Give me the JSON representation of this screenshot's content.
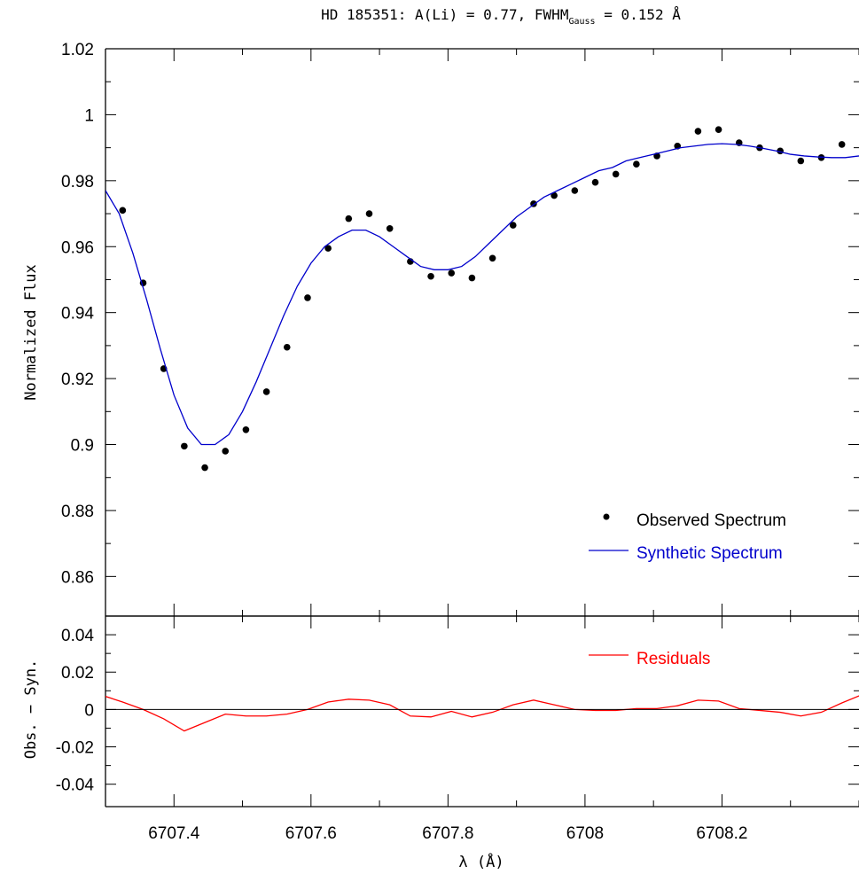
{
  "title": {
    "prefix": "HD 185351: A(Li) = 0.77, FWHM",
    "subscript": "Gauss",
    "suffix": " = 0.152 Å"
  },
  "chart_data": [
    {
      "type": "scatter+line",
      "panel": "main",
      "title": "HD 185351: A(Li) = 0.77, FWHM_Gauss = 0.152 Å",
      "xlabel": "λ (Å)",
      "ylabel": "Normalized Flux",
      "xlim": [
        6707.3,
        6708.4
      ],
      "ylim": [
        0.848,
        1.02
      ],
      "xticks": [
        6707.4,
        6707.6,
        6707.8,
        6708,
        6708.2
      ],
      "xtick_labels": [
        "6707.4",
        "6707.6",
        "6707.8",
        "6708",
        "6708.2"
      ],
      "yticks": [
        0.86,
        0.88,
        0.9,
        0.92,
        0.94,
        0.96,
        0.98,
        1,
        1.02
      ],
      "ytick_labels": [
        "0.86",
        "0.88",
        "0.9",
        "0.92",
        "0.94",
        "0.96",
        "0.98",
        "1",
        "1.02"
      ],
      "legend_position": "bottom-right",
      "series": [
        {
          "name": "Observed Spectrum",
          "kind": "points",
          "color": "#000000",
          "x": [
            6707.325,
            6707.355,
            6707.385,
            6707.415,
            6707.445,
            6707.475,
            6707.505,
            6707.535,
            6707.565,
            6707.595,
            6707.625,
            6707.655,
            6707.685,
            6707.715,
            6707.745,
            6707.775,
            6707.805,
            6707.835,
            6707.865,
            6707.895,
            6707.925,
            6707.955,
            6707.985,
            6708.015,
            6708.045,
            6708.075,
            6708.105,
            6708.135,
            6708.165,
            6708.195,
            6708.225,
            6708.255,
            6708.285,
            6708.315,
            6708.345,
            6708.375,
            6708.405
          ],
          "y": [
            0.971,
            0.949,
            0.923,
            0.8995,
            0.893,
            0.898,
            0.9045,
            0.916,
            0.9295,
            0.9445,
            0.9595,
            0.9685,
            0.97,
            0.9655,
            0.9555,
            0.951,
            0.952,
            0.9505,
            0.9565,
            0.9665,
            0.973,
            0.9755,
            0.977,
            0.9795,
            0.982,
            0.985,
            0.9875,
            0.9905,
            0.995,
            0.9955,
            0.9915,
            0.99,
            0.989,
            0.986,
            0.987,
            0.991,
            0.995
          ]
        },
        {
          "name": "Synthetic Spectrum",
          "kind": "line",
          "color": "#0000cc",
          "x": [
            6707.3,
            6707.32,
            6707.34,
            6707.36,
            6707.38,
            6707.4,
            6707.42,
            6707.44,
            6707.46,
            6707.48,
            6707.5,
            6707.52,
            6707.54,
            6707.56,
            6707.58,
            6707.6,
            6707.62,
            6707.64,
            6707.66,
            6707.68,
            6707.7,
            6707.72,
            6707.74,
            6707.76,
            6707.78,
            6707.8,
            6707.82,
            6707.84,
            6707.86,
            6707.88,
            6707.9,
            6707.92,
            6707.94,
            6707.96,
            6707.98,
            6708.0,
            6708.02,
            6708.04,
            6708.06,
            6708.08,
            6708.1,
            6708.12,
            6708.14,
            6708.16,
            6708.18,
            6708.2,
            6708.22,
            6708.24,
            6708.26,
            6708.28,
            6708.3,
            6708.32,
            6708.34,
            6708.36,
            6708.38,
            6708.4
          ],
          "y": [
            0.977,
            0.97,
            0.958,
            0.944,
            0.929,
            0.915,
            0.905,
            0.9,
            0.9,
            0.903,
            0.91,
            0.919,
            0.929,
            0.939,
            0.948,
            0.955,
            0.96,
            0.963,
            0.965,
            0.965,
            0.963,
            0.96,
            0.957,
            0.954,
            0.953,
            0.953,
            0.954,
            0.957,
            0.961,
            0.965,
            0.969,
            0.972,
            0.975,
            0.977,
            0.979,
            0.981,
            0.983,
            0.984,
            0.986,
            0.987,
            0.988,
            0.989,
            0.99,
            0.9905,
            0.991,
            0.9912,
            0.991,
            0.9905,
            0.9898,
            0.989,
            0.988,
            0.9875,
            0.9872,
            0.987,
            0.987,
            0.9875
          ]
        }
      ]
    },
    {
      "type": "line",
      "panel": "residuals",
      "xlabel": "λ (Å)",
      "ylabel": "Obs. − Syn.",
      "xlim": [
        6707.3,
        6708.4
      ],
      "ylim": [
        -0.052,
        0.05
      ],
      "xticks": [
        6707.4,
        6707.6,
        6707.8,
        6708,
        6708.2
      ],
      "xtick_labels": [
        "6707.4",
        "6707.6",
        "6707.8",
        "6708",
        "6708.2"
      ],
      "yticks": [
        -0.04,
        -0.02,
        0,
        0.02,
        0.04
      ],
      "ytick_labels": [
        "-0.04",
        "-0.02",
        "0",
        "0.02",
        "0.04"
      ],
      "legend_position": "top-right",
      "series": [
        {
          "name": "Residuals",
          "kind": "line",
          "color": "#ff0000",
          "x": [
            6707.3,
            6707.325,
            6707.355,
            6707.385,
            6707.415,
            6707.445,
            6707.475,
            6707.505,
            6707.535,
            6707.565,
            6707.595,
            6707.625,
            6707.655,
            6707.685,
            6707.715,
            6707.745,
            6707.775,
            6707.805,
            6707.835,
            6707.865,
            6707.895,
            6707.925,
            6707.955,
            6707.985,
            6708.015,
            6708.045,
            6708.075,
            6708.105,
            6708.135,
            6708.165,
            6708.195,
            6708.225,
            6708.255,
            6708.285,
            6708.315,
            6708.345,
            6708.375,
            6708.405
          ],
          "y": [
            0.007,
            0.004,
            0.0,
            -0.005,
            -0.0115,
            -0.007,
            -0.0025,
            -0.0035,
            -0.0035,
            -0.0025,
            0.0,
            0.004,
            0.0055,
            0.005,
            0.0025,
            -0.0035,
            -0.004,
            -0.001,
            -0.004,
            -0.0015,
            0.0025,
            0.005,
            0.0025,
            0.0,
            -0.0005,
            -0.0005,
            0.0005,
            0.0005,
            0.002,
            0.005,
            0.0045,
            0.0005,
            -0.0005,
            -0.0015,
            -0.0035,
            -0.0015,
            0.0035,
            0.008
          ]
        },
        {
          "name": "",
          "kind": "reference-line",
          "color": "#000000",
          "y": 0
        }
      ]
    }
  ]
}
